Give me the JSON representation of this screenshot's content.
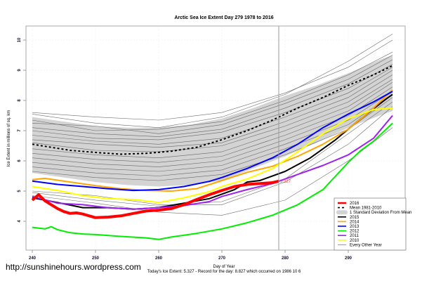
{
  "watermark": "http://sunshinehours.wordpress.com",
  "footer_note": "Today's Ice Extent: 5.327  - Record for the day: 8.827 which occurred on 1986 10 6",
  "chart_data": {
    "type": "line",
    "title": "Arctic Sea Ice Extent Day 279 1978 to 2016",
    "xlabel": "Day of Year",
    "ylabel": "Ice Extent in millions of sq. km",
    "xlim": [
      239,
      299
    ],
    "ylim": [
      3.05,
      10.45
    ],
    "xticks": [
      240,
      250,
      260,
      270,
      280,
      290
    ],
    "yticks": [
      4,
      5,
      6,
      7,
      8,
      9,
      10
    ],
    "grid": true,
    "legend_position": "bottom-right",
    "marker_day": 279,
    "annotation": {
      "day": 279,
      "value": 5.327,
      "text": "5.327",
      "color": "#ff4040"
    },
    "std_band": {
      "name": "1 Standard Deviation From Mean",
      "x": [
        240,
        245,
        250,
        255,
        260,
        265,
        270,
        275,
        280,
        285,
        290,
        295,
        297
      ],
      "upper": [
        7.45,
        7.3,
        7.15,
        7.1,
        7.1,
        7.2,
        7.4,
        7.75,
        8.15,
        8.5,
        8.9,
        9.35,
        9.5
      ],
      "lower": [
        5.6,
        5.45,
        5.3,
        5.2,
        5.15,
        5.2,
        5.35,
        5.75,
        6.15,
        6.6,
        7.1,
        7.5,
        7.65
      ],
      "color": "#d3d3d3"
    },
    "series": [
      {
        "name": "2016",
        "color": "#ff0000",
        "width": 4,
        "x": [
          240,
          241,
          242,
          243,
          244,
          245,
          246,
          247,
          248,
          250,
          252,
          254,
          256,
          258,
          260,
          262,
          264,
          266,
          268,
          270,
          272,
          274,
          276,
          278,
          279
        ],
        "y": [
          4.7,
          4.88,
          4.68,
          4.55,
          4.42,
          4.32,
          4.26,
          4.28,
          4.24,
          4.12,
          4.14,
          4.18,
          4.26,
          4.34,
          4.37,
          4.42,
          4.55,
          4.72,
          4.88,
          5.02,
          5.15,
          5.22,
          5.25,
          5.28,
          5.33
        ]
      },
      {
        "name": "Mean 1981-2010",
        "color": "#000000",
        "width": 2,
        "dash": "3,3",
        "x": [
          240,
          243,
          246,
          250,
          254,
          258,
          262,
          266,
          270,
          274,
          278,
          282,
          286,
          290,
          294,
          297
        ],
        "y": [
          6.55,
          6.45,
          6.35,
          6.28,
          6.22,
          6.25,
          6.32,
          6.45,
          6.7,
          7.0,
          7.35,
          7.75,
          8.1,
          8.5,
          8.85,
          9.15
        ]
      },
      {
        "name": "2015",
        "color": "#000000",
        "width": 2,
        "x": [
          240,
          244,
          248,
          252,
          256,
          260,
          264,
          268,
          272,
          274,
          276,
          280,
          284,
          288,
          292,
          296,
          297
        ],
        "y": [
          4.78,
          4.62,
          4.45,
          4.45,
          4.4,
          4.45,
          4.6,
          4.75,
          5.05,
          5.3,
          5.35,
          5.65,
          6.1,
          6.7,
          7.4,
          8.05,
          8.2
        ]
      },
      {
        "name": "2014",
        "color": "#ffa500",
        "width": 2,
        "x": [
          240,
          242,
          246,
          250,
          254,
          258,
          262,
          266,
          270,
          274,
          278,
          282,
          286,
          290,
          294,
          297
        ],
        "y": [
          5.38,
          5.42,
          5.3,
          5.18,
          5.08,
          5.02,
          5.0,
          5.08,
          5.35,
          5.62,
          5.82,
          6.15,
          6.55,
          7.05,
          7.75,
          8.35
        ]
      },
      {
        "name": "2013",
        "color": "#0000ff",
        "width": 2,
        "x": [
          240,
          244,
          248,
          252,
          256,
          260,
          264,
          268,
          270,
          274,
          278,
          282,
          286,
          290,
          294,
          297
        ],
        "y": [
          5.33,
          5.22,
          5.15,
          5.08,
          5.02,
          5.05,
          5.15,
          5.32,
          5.45,
          5.75,
          6.1,
          6.55,
          7.1,
          7.55,
          7.95,
          8.3
        ]
      },
      {
        "name": "2012",
        "color": "#00ee00",
        "width": 2,
        "x": [
          240,
          242,
          243,
          244,
          246,
          248,
          250,
          254,
          258,
          260,
          262,
          266,
          270,
          274,
          278,
          282,
          284,
          286,
          288,
          290,
          292,
          294,
          297
        ],
        "y": [
          3.8,
          3.75,
          3.82,
          3.72,
          3.62,
          3.58,
          3.56,
          3.5,
          3.45,
          3.4,
          3.48,
          3.6,
          3.75,
          3.95,
          4.2,
          4.55,
          4.8,
          5.05,
          5.5,
          5.95,
          6.35,
          6.65,
          7.25
        ]
      },
      {
        "name": "2011",
        "color": "#a020f0",
        "width": 2,
        "x": [
          240,
          244,
          248,
          252,
          256,
          260,
          264,
          268,
          270,
          274,
          278,
          282,
          286,
          290,
          294,
          297
        ],
        "y": [
          4.82,
          4.6,
          4.55,
          4.45,
          4.4,
          4.45,
          4.52,
          4.65,
          4.82,
          5.05,
          5.25,
          5.55,
          5.85,
          6.2,
          6.75,
          7.5
        ]
      },
      {
        "name": "2010",
        "color": "#ffff00",
        "width": 2,
        "x": [
          240,
          244,
          248,
          252,
          256,
          260,
          264,
          268,
          270,
          274,
          278,
          282,
          286,
          290,
          294,
          297
        ],
        "y": [
          5.15,
          5.02,
          4.85,
          4.75,
          4.72,
          4.62,
          4.78,
          4.98,
          5.15,
          5.4,
          5.75,
          6.3,
          6.9,
          7.4,
          7.7,
          7.75
        ]
      }
    ],
    "background_years": {
      "name": "Every Other Year",
      "color": "#808080",
      "x": [
        240,
        250,
        260,
        270,
        280,
        290,
        297
      ],
      "lines": [
        [
          7.6,
          7.45,
          7.35,
          7.6,
          8.25,
          9.1,
          10.0
        ],
        [
          7.55,
          7.25,
          7.1,
          7.45,
          8.2,
          9.3,
          10.2
        ],
        [
          7.35,
          7.0,
          7.05,
          7.3,
          8.0,
          8.85,
          9.6
        ],
        [
          7.25,
          7.15,
          6.9,
          7.2,
          7.9,
          8.7,
          9.5
        ],
        [
          7.1,
          6.9,
          6.8,
          7.05,
          7.75,
          8.55,
          9.35
        ],
        [
          7.0,
          6.75,
          6.7,
          6.95,
          7.6,
          8.4,
          9.2
        ],
        [
          6.85,
          6.65,
          6.55,
          6.75,
          7.45,
          8.25,
          9.1
        ],
        [
          6.7,
          6.55,
          6.45,
          6.6,
          7.3,
          8.1,
          9.0
        ],
        [
          6.6,
          6.35,
          6.3,
          6.5,
          7.15,
          7.95,
          8.85
        ],
        [
          6.4,
          6.2,
          6.1,
          6.3,
          7.0,
          7.8,
          8.7
        ],
        [
          6.25,
          6.05,
          5.95,
          6.15,
          6.85,
          7.65,
          8.6
        ],
        [
          6.1,
          5.9,
          5.8,
          6.0,
          6.7,
          7.5,
          8.45
        ],
        [
          5.95,
          5.75,
          5.65,
          5.85,
          6.55,
          7.35,
          8.3
        ],
        [
          5.8,
          5.6,
          5.5,
          5.7,
          6.4,
          7.2,
          8.2
        ],
        [
          5.65,
          5.45,
          5.35,
          5.55,
          6.2,
          7.05,
          8.1
        ],
        [
          5.0,
          4.85,
          4.55,
          4.55,
          5.3,
          6.55,
          7.8
        ],
        [
          4.85,
          4.6,
          4.3,
          4.2,
          4.7,
          6.0,
          7.1
        ],
        [
          4.95,
          4.7,
          4.5,
          4.65,
          5.4,
          6.9,
          7.95
        ]
      ]
    },
    "legend": [
      {
        "label": "2016",
        "color": "#ff0000",
        "kind": "thick"
      },
      {
        "label": "Mean 1981-2010",
        "color": "#000000",
        "kind": "dash"
      },
      {
        "label": "1 Standard Deviation From Mean",
        "color": "#d3d3d3",
        "kind": "band"
      },
      {
        "label": "2015",
        "color": "#000000",
        "kind": "line"
      },
      {
        "label": "2014",
        "color": "#ffa500",
        "kind": "line"
      },
      {
        "label": "2013",
        "color": "#0000ff",
        "kind": "line"
      },
      {
        "label": "2012",
        "color": "#00ee00",
        "kind": "line"
      },
      {
        "label": "2011",
        "color": "#a020f0",
        "kind": "line"
      },
      {
        "label": "2010",
        "color": "#ffff00",
        "kind": "line"
      },
      {
        "label": "Every Other Year",
        "color": "#808080",
        "kind": "thin"
      }
    ]
  }
}
